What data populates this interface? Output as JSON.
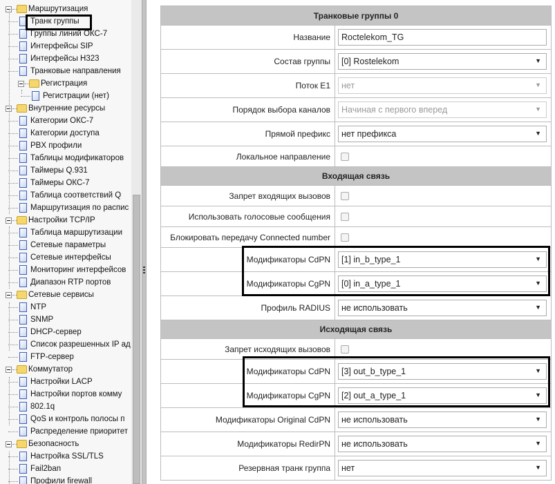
{
  "sidebar": {
    "items": [
      {
        "label": "Маршрутизация",
        "type": "folder",
        "level": 0
      },
      {
        "label": "Транк группы",
        "type": "page",
        "level": 1,
        "selected": true
      },
      {
        "label": "Группы линий ОКС-7",
        "type": "page",
        "level": 1
      },
      {
        "label": "Интерфейсы SIP",
        "type": "page",
        "level": 1
      },
      {
        "label": "Интерфейсы H323",
        "type": "page",
        "level": 1
      },
      {
        "label": "Транковые направления",
        "type": "page",
        "level": 1
      },
      {
        "label": "Регистрация",
        "type": "folder",
        "level": 1
      },
      {
        "label": "Регистрации (нет)",
        "type": "page",
        "level": 2
      },
      {
        "label": "Внутренние ресурсы",
        "type": "folder",
        "level": 0
      },
      {
        "label": "Категории ОКС-7",
        "type": "page",
        "level": 1
      },
      {
        "label": "Категории доступа",
        "type": "page",
        "level": 1
      },
      {
        "label": "PBX профили",
        "type": "page",
        "level": 1
      },
      {
        "label": "Таблицы модификаторов",
        "type": "page",
        "level": 1
      },
      {
        "label": "Таймеры Q.931",
        "type": "page",
        "level": 1
      },
      {
        "label": "Таймеры ОКС-7",
        "type": "page",
        "level": 1
      },
      {
        "label": "Таблица соответствий Q",
        "type": "page",
        "level": 1
      },
      {
        "label": "Маршрутизация по распис",
        "type": "page",
        "level": 1
      },
      {
        "label": "Настройки TCP/IP",
        "type": "folder",
        "level": 0
      },
      {
        "label": "Таблица маршрутизации",
        "type": "page",
        "level": 1
      },
      {
        "label": "Сетевые параметры",
        "type": "page",
        "level": 1
      },
      {
        "label": "Сетевые интерфейсы",
        "type": "page",
        "level": 1
      },
      {
        "label": "Мониторинг интерфейсов",
        "type": "page",
        "level": 1
      },
      {
        "label": "Диапазон RTP портов",
        "type": "page",
        "level": 1
      },
      {
        "label": "Сетевые сервисы",
        "type": "folder",
        "level": 0
      },
      {
        "label": "NTP",
        "type": "page",
        "level": 1
      },
      {
        "label": "SNMP",
        "type": "page",
        "level": 1
      },
      {
        "label": "DHCP-сервер",
        "type": "page",
        "level": 1
      },
      {
        "label": "Список разрешенных IP ад",
        "type": "page",
        "level": 1
      },
      {
        "label": "FTP-сервер",
        "type": "page",
        "level": 1
      },
      {
        "label": "Коммутатор",
        "type": "folder",
        "level": 0
      },
      {
        "label": "Настройки LACP",
        "type": "page",
        "level": 1
      },
      {
        "label": "Настройки портов комму",
        "type": "page",
        "level": 1
      },
      {
        "label": "802.1q",
        "type": "page",
        "level": 1
      },
      {
        "label": "QoS и контроль полосы п",
        "type": "page",
        "level": 1
      },
      {
        "label": "Распределение приоритет",
        "type": "page",
        "level": 1
      },
      {
        "label": "Безопасность",
        "type": "folder",
        "level": 0
      },
      {
        "label": "Настройка SSL/TLS",
        "type": "page",
        "level": 1
      },
      {
        "label": "Fail2ban",
        "type": "page",
        "level": 1
      },
      {
        "label": "Профили firewall",
        "type": "page",
        "level": 1
      }
    ]
  },
  "form": {
    "rows": [
      {
        "kind": "header",
        "label": "Транковые группы 0"
      },
      {
        "kind": "input",
        "label": "Название",
        "value": "Roctelekom_TG"
      },
      {
        "kind": "select",
        "label": "Состав группы",
        "value": "[0] Rostelekom"
      },
      {
        "kind": "select",
        "label": "Поток E1",
        "value": "нет",
        "disabled": true
      },
      {
        "kind": "select",
        "label": "Порядок выбора каналов",
        "value": "Начиная с первого вперед",
        "disabled": true
      },
      {
        "kind": "select",
        "label": "Прямой префикс",
        "value": "нет префикса"
      },
      {
        "kind": "checkbox",
        "label": "Локальное направление",
        "checked": false
      },
      {
        "kind": "header",
        "label": "Входящая связь"
      },
      {
        "kind": "checkbox",
        "label": "Запрет входящих вызовов",
        "checked": false
      },
      {
        "kind": "checkbox",
        "label": "Использовать голосовые сообщения",
        "checked": false
      },
      {
        "kind": "checkbox",
        "label": "Блокировать передачу Connected number",
        "checked": false
      },
      {
        "kind": "select",
        "label": "Модификаторы CdPN",
        "value": "[1] in_b_type_1"
      },
      {
        "kind": "select",
        "label": "Модификаторы CgPN",
        "value": "[0] in_a_type_1"
      },
      {
        "kind": "select",
        "label": "Профиль RADIUS",
        "value": "не использовать"
      },
      {
        "kind": "header",
        "label": "Исходящая связь"
      },
      {
        "kind": "checkbox",
        "label": "Запрет исходящих вызовов",
        "checked": false
      },
      {
        "kind": "select",
        "label": "Модификаторы CdPN",
        "value": "[3] out_b_type_1"
      },
      {
        "kind": "select",
        "label": "Модификаторы CgPN",
        "value": "[2] out_a_type_1"
      },
      {
        "kind": "select",
        "label": "Модификаторы Original CdPN",
        "value": "не использовать"
      },
      {
        "kind": "select",
        "label": "Модификаторы RedirPN",
        "value": "не использовать"
      },
      {
        "kind": "select",
        "label": "Резервная транк группа",
        "value": "нет"
      }
    ]
  },
  "icons": {
    "dropdown": "triangle-down-icon",
    "folder": "folder-icon",
    "page": "page-icon",
    "collapse": "minus-box-icon"
  }
}
